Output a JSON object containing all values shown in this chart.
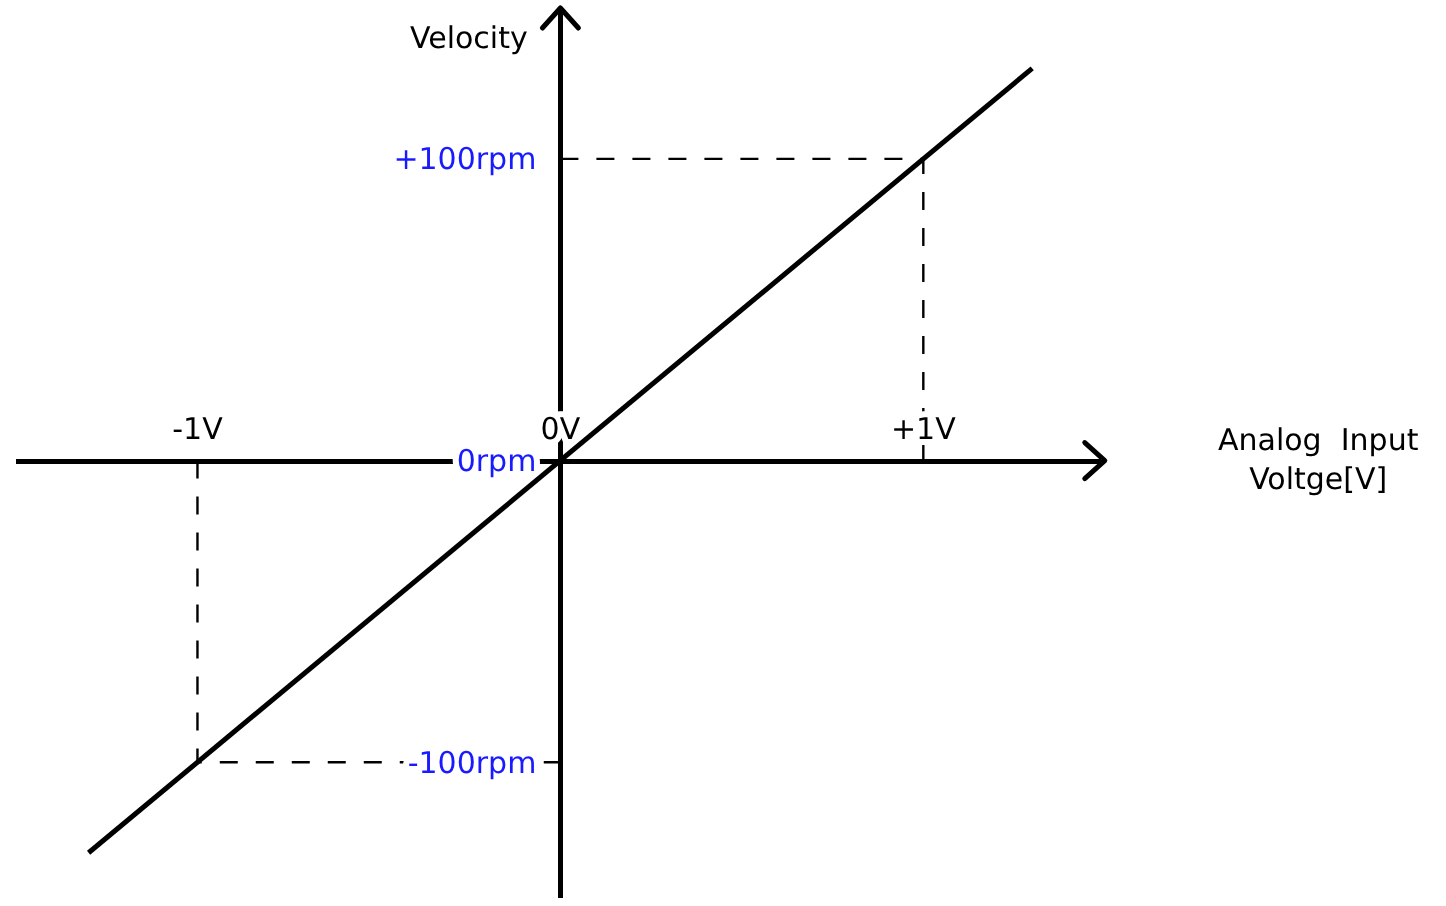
{
  "chart_data": {
    "type": "line",
    "xlabel": "Analog  Input\nVoltge[V]",
    "ylabel": "Velocity",
    "xlim": [
      -1.5,
      1.5
    ],
    "ylim": [
      -145,
      150
    ],
    "xticks": [
      {
        "value": -1,
        "label": "-1V"
      },
      {
        "value": 0,
        "label": "0V"
      },
      {
        "value": 1,
        "label": "+1V"
      }
    ],
    "yticks": [
      {
        "value": -100,
        "label": "-100rpm"
      },
      {
        "value": 0,
        "label": "0rpm"
      },
      {
        "value": 100,
        "label": "+100rpm"
      }
    ],
    "series": [
      {
        "color": "#000000",
        "x": [
          -1.3,
          1.3
        ],
        "values": [
          -130,
          130
        ],
        "line_style": "solid"
      },
      {
        "color": "#000000",
        "x": [
          -1,
          -1,
          0
        ],
        "values": [
          0,
          -100,
          -100
        ],
        "line_style": "dashed"
      },
      {
        "color": "#000000",
        "x": [
          0,
          1,
          1
        ],
        "values": [
          100,
          100,
          0
        ],
        "line_style": "dashed"
      }
    ],
    "grid": false,
    "marker": "none"
  }
}
